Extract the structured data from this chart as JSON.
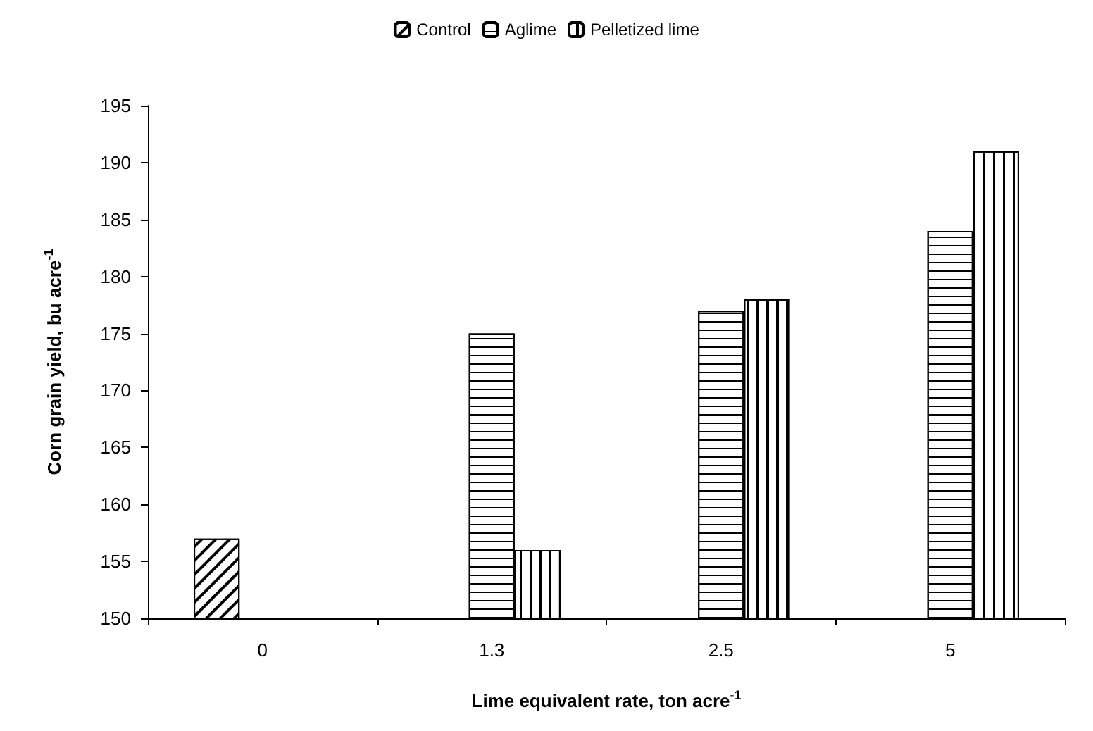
{
  "chart_data": {
    "type": "bar",
    "categories": [
      "0",
      "1.3",
      "2.5",
      "5"
    ],
    "series": [
      {
        "name": "Control",
        "color": "#000000",
        "values": [
          157,
          null,
          null,
          null
        ]
      },
      {
        "name": "Aglime",
        "color": "#000000",
        "values": [
          null,
          175,
          177,
          184
        ]
      },
      {
        "name": "Pelletized lime",
        "color": "#000000",
        "values": [
          null,
          156,
          178,
          191
        ]
      }
    ],
    "xlabel": "Lime equivalent rate, ton acre$^{-1}$",
    "ylabel": "Corn grain yield, bu acre$^{-1}$",
    "ylim": [
      150,
      195
    ],
    "yticks": [
      150,
      155,
      160,
      165,
      170,
      175,
      180,
      185,
      190,
      195
    ],
    "grid": false,
    "legend": "top"
  }
}
